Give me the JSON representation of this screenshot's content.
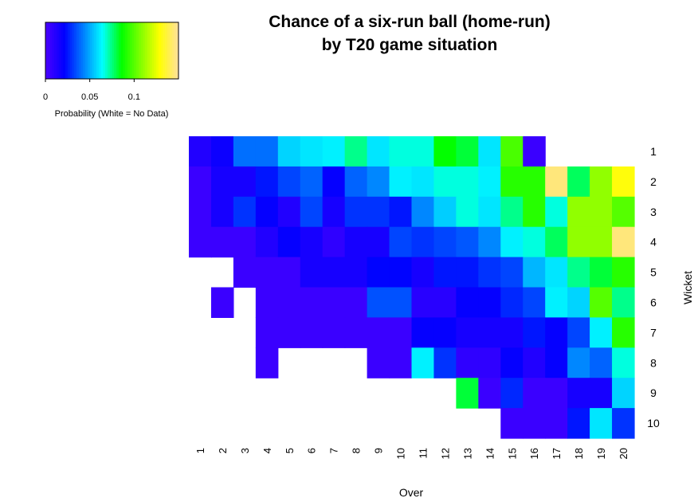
{
  "chart_data": {
    "type": "heatmap",
    "title_line1": "Chance of a six-run ball (home-run)",
    "title_line2": "by T20 game situation",
    "xlabel": "Over",
    "ylabel": "Wicket",
    "x_categories": [
      "1",
      "2",
      "3",
      "4",
      "5",
      "6",
      "7",
      "8",
      "9",
      "10",
      "11",
      "12",
      "13",
      "14",
      "15",
      "16",
      "17",
      "18",
      "19",
      "20"
    ],
    "y_categories": [
      "1",
      "2",
      "3",
      "4",
      "5",
      "6",
      "7",
      "8",
      "9",
      "10"
    ],
    "color_scale": {
      "min": 0,
      "max": 0.15,
      "ticks": [
        {
          "value": 0,
          "label": "0"
        },
        {
          "value": 0.05,
          "label": "0.05"
        },
        {
          "value": 0.1,
          "label": "0.1"
        }
      ],
      "title": "Probability (White = No Data)",
      "stops": [
        "#4B00FF",
        "#0000FF",
        "#0080FF",
        "#00FFFF",
        "#00FF00",
        "#80FF00",
        "#FFFF00",
        "#FFE0A0"
      ]
    },
    "values": [
      [
        0.012,
        0.018,
        0.04,
        0.04,
        0.057,
        0.06,
        0.062,
        0.074,
        0.06,
        0.067,
        0.067,
        0.086,
        0.081,
        0.06,
        0.098,
        0.005,
        null,
        null,
        null,
        null
      ],
      [
        0.005,
        0.015,
        0.015,
        0.025,
        0.033,
        0.038,
        0.02,
        0.038,
        0.044,
        0.062,
        0.06,
        0.067,
        0.067,
        0.062,
        0.092,
        0.092,
        0.145,
        0.078,
        0.11,
        0.13
      ],
      [
        0.005,
        0.015,
        0.03,
        0.02,
        0.012,
        0.033,
        0.015,
        0.03,
        0.03,
        0.025,
        0.044,
        0.056,
        0.067,
        0.06,
        0.074,
        0.092,
        0.067,
        0.11,
        0.11,
        0.1
      ],
      [
        0.005,
        0.005,
        0.005,
        0.012,
        0.02,
        0.015,
        0.008,
        0.015,
        0.015,
        0.033,
        0.03,
        0.033,
        0.036,
        0.044,
        0.062,
        0.067,
        0.078,
        0.11,
        0.11,
        0.145
      ],
      [
        null,
        null,
        0.005,
        0.005,
        0.005,
        0.015,
        0.015,
        0.015,
        0.022,
        0.022,
        0.015,
        0.025,
        0.025,
        0.03,
        0.033,
        0.052,
        0.06,
        0.074,
        0.081,
        0.092
      ],
      [
        null,
        0.005,
        null,
        0.005,
        0.005,
        0.005,
        0.005,
        0.005,
        0.035,
        0.035,
        0.01,
        0.01,
        0.02,
        0.02,
        0.028,
        0.033,
        0.062,
        0.057,
        0.1,
        0.074
      ],
      [
        null,
        null,
        null,
        0.005,
        0.005,
        0.005,
        0.005,
        0.005,
        0.005,
        0.005,
        0.02,
        0.02,
        0.015,
        0.015,
        0.015,
        0.025,
        0.02,
        0.033,
        0.062,
        0.092
      ],
      [
        null,
        null,
        null,
        0.005,
        null,
        null,
        null,
        null,
        0.005,
        0.005,
        0.062,
        0.03,
        0.008,
        0.008,
        0.02,
        0.012,
        0.02,
        0.044,
        0.038,
        0.067
      ],
      [
        null,
        null,
        null,
        null,
        null,
        null,
        null,
        null,
        null,
        null,
        null,
        null,
        0.081,
        0.005,
        0.028,
        0.005,
        0.005,
        0.015,
        0.015,
        0.057
      ],
      [
        null,
        null,
        null,
        null,
        null,
        null,
        null,
        null,
        null,
        null,
        null,
        null,
        null,
        null,
        0.005,
        0.005,
        0.005,
        0.025,
        0.06,
        0.03
      ]
    ]
  }
}
